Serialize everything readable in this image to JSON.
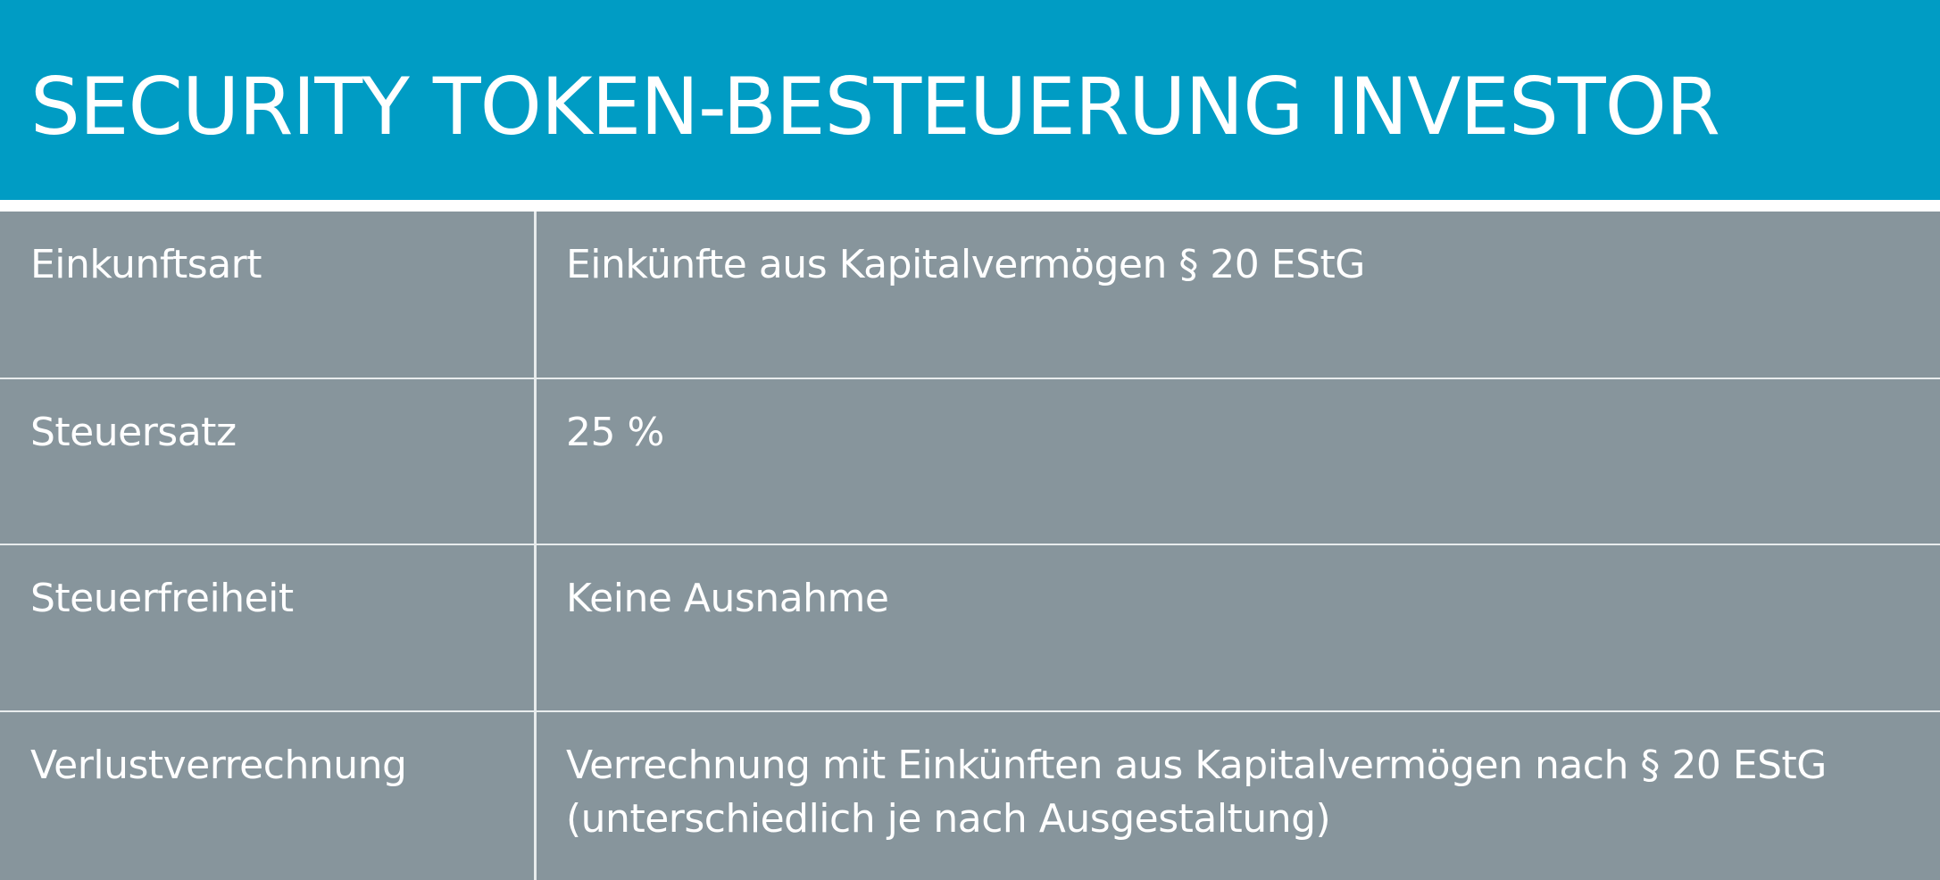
{
  "header": {
    "title": "SECURITY TOKEN-BESTEUERUNG INVESTOR",
    "background_color": "#009cc4"
  },
  "table": {
    "background_color": "#87959c",
    "rows": [
      {
        "label": "Einkunftsart",
        "value": "Einkünfte aus Kapitalvermögen § 20 EStG"
      },
      {
        "label": "Steuersatz",
        "value": "25 %"
      },
      {
        "label": "Steuerfreiheit",
        "value": "Keine Ausnahme"
      },
      {
        "label": "Verlustverrechnung",
        "value": "Verrechnung mit Einkünften aus Kapitalvermögen nach § 20 EStG (unterschiedlich je nach Ausgestaltung)"
      }
    ]
  }
}
